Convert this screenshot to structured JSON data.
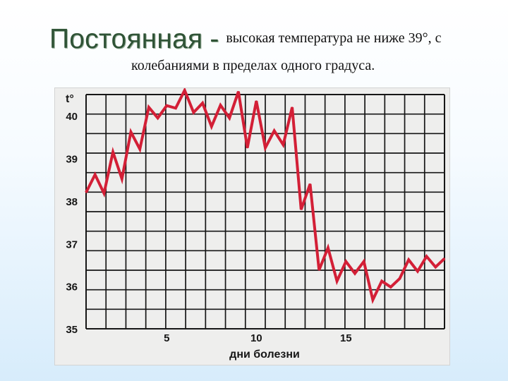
{
  "slide": {
    "heading_main": "Постоянная",
    "heading_separator": "-",
    "heading_desc_line1": "высокая температура не ниже 39°, с",
    "heading_desc_line2": "колебаниями в пределах одного градуса."
  },
  "colors": {
    "line": "#d31f36",
    "grid": "#161616",
    "panel_bg": "#eeeeed"
  },
  "chart_data": {
    "type": "line",
    "title": "",
    "xlabel": "дни болезни",
    "ylabel": "t°",
    "xlim": [
      0.5,
      20.5
    ],
    "ylim": [
      35,
      40.5
    ],
    "x_ticks": [
      5,
      10,
      15
    ],
    "y_ticks": [
      35,
      36,
      37,
      38,
      39,
      40
    ],
    "grid": true,
    "legend": "none",
    "series": [
      {
        "name": "",
        "x": [
          0.5,
          1.0,
          1.5,
          2.0,
          2.5,
          3.0,
          3.5,
          4.0,
          4.5,
          5.0,
          5.5,
          6.0,
          6.5,
          7.0,
          7.5,
          8.0,
          8.5,
          9.0,
          9.5,
          10.0,
          10.5,
          11.0,
          11.5,
          12.0,
          12.5,
          13.0,
          13.5,
          14.0,
          14.5,
          15.0,
          15.5,
          16.0,
          16.5,
          17.0,
          17.5,
          18.0,
          18.5,
          19.0,
          19.5,
          20.0,
          20.5
        ],
        "values": [
          38.2,
          38.62,
          38.18,
          39.15,
          38.52,
          39.62,
          39.22,
          40.2,
          39.95,
          40.24,
          40.18,
          40.6,
          40.08,
          40.3,
          39.75,
          40.25,
          39.95,
          40.57,
          39.25,
          40.35,
          39.25,
          39.65,
          39.32,
          40.2,
          37.8,
          38.4,
          36.38,
          36.9,
          36.12,
          36.58,
          36.3,
          36.58,
          35.68,
          36.12,
          35.98,
          36.18,
          36.62,
          36.35,
          36.7,
          36.45,
          36.65
        ]
      }
    ]
  }
}
